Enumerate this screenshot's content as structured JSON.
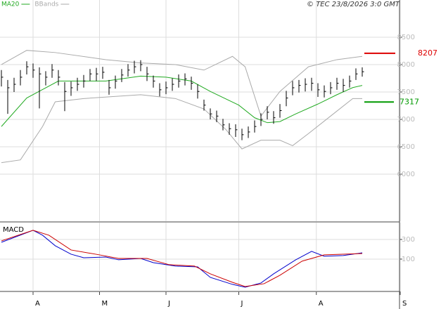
{
  "chart_data": [
    {
      "type": "ohlc",
      "legend": [
        {
          "name": "MA20",
          "color": "#22aa22"
        },
        {
          "name": "BBands",
          "color": "#aaaaaa"
        }
      ],
      "credit": "© TEC 23/8/2026 3:0 GMT",
      "x": [
        0,
        2,
        4,
        6,
        8,
        10,
        12,
        14,
        16,
        18,
        20,
        22,
        24,
        26,
        28,
        30,
        32,
        34,
        36,
        38,
        40,
        42,
        44,
        46,
        48,
        50,
        52,
        54,
        56,
        58,
        60,
        62,
        64,
        66,
        68,
        70,
        72,
        74,
        76,
        78,
        80,
        82,
        84,
        86,
        88,
        90,
        92,
        94,
        96,
        98,
        100,
        102,
        104,
        106,
        108,
        110,
        112,
        114
      ],
      "high": [
        7900,
        7720,
        7760,
        7900,
        8060,
        8020,
        7950,
        7880,
        8010,
        7900,
        7680,
        7690,
        7760,
        7810,
        7920,
        7940,
        7960,
        7720,
        7800,
        7920,
        8010,
        8070,
        8080,
        7960,
        7800,
        7660,
        7690,
        7750,
        7820,
        7840,
        7780,
        7640,
        7360,
        7200,
        7160,
        7010,
        6930,
        6910,
        6830,
        6870,
        6980,
        7110,
        7240,
        7150,
        7280,
        7520,
        7700,
        7720,
        7750,
        7760,
        7660,
        7620,
        7680,
        7760,
        7740,
        7800,
        7930,
        7950
      ],
      "low": [
        7600,
        7100,
        7500,
        7620,
        7820,
        7760,
        7200,
        7620,
        7760,
        7620,
        7150,
        7430,
        7520,
        7580,
        7700,
        7700,
        7740,
        7450,
        7560,
        7680,
        7780,
        7840,
        7880,
        7700,
        7580,
        7420,
        7460,
        7520,
        7580,
        7620,
        7540,
        7380,
        7160,
        7000,
        6950,
        6800,
        6720,
        6680,
        6620,
        6660,
        6760,
        6880,
        7000,
        6920,
        7030,
        7240,
        7440,
        7490,
        7510,
        7520,
        7410,
        7400,
        7460,
        7540,
        7500,
        7580,
        7720,
        7780
      ],
      "close": [
        7770,
        7577,
        7640,
        7770,
        7960,
        7900,
        7830,
        7770,
        7900,
        7770,
        7510,
        7577,
        7640,
        7700,
        7830,
        7830,
        7860,
        7577,
        7700,
        7810,
        7900,
        7960,
        8000,
        7830,
        7700,
        7540,
        7577,
        7640,
        7700,
        7740,
        7660,
        7510,
        7260,
        7100,
        7060,
        6900,
        6830,
        6810,
        6720,
        6770,
        6870,
        7000,
        7130,
        7030,
        7160,
        7390,
        7577,
        7620,
        7640,
        7660,
        7540,
        7510,
        7577,
        7660,
        7620,
        7700,
        7830,
        7870
      ],
      "color": "#000000",
      "ma20": {
        "x": [
          0,
          8,
          18,
          33,
          44,
          52,
          60,
          66,
          75,
          80,
          84,
          88,
          93,
          100,
          106,
          111,
          114
        ],
        "values": [
          6870,
          7390,
          7700,
          7700,
          7790,
          7770,
          7700,
          7510,
          7260,
          7030,
          6940,
          6960,
          7100,
          7280,
          7450,
          7580,
          7620
        ]
      },
      "bb_upper": {
        "x": [
          0,
          8,
          17,
          33,
          44,
          55,
          64,
          73,
          77,
          82,
          88,
          97,
          106,
          114
        ],
        "values": [
          8000,
          8260,
          8220,
          8090,
          8030,
          8000,
          7900,
          8150,
          7960,
          7060,
          7510,
          7960,
          8090,
          8150
        ]
      },
      "bb_lower": {
        "x": [
          0,
          6,
          13,
          17,
          26,
          44,
          55,
          64,
          71,
          76,
          82,
          88,
          92,
          97,
          104,
          111,
          114
        ],
        "values": [
          6210,
          6260,
          6870,
          7320,
          7380,
          7450,
          7380,
          7190,
          6810,
          6460,
          6620,
          6620,
          6520,
          6740,
          7060,
          7380,
          7380
        ]
      },
      "levels": [
        {
          "value": 8207,
          "color": "#dd0000"
        },
        {
          "value": 7317,
          "color": "#009900"
        }
      ],
      "ylim": [
        5141,
        9179
      ],
      "yticks": [
        8500,
        8000,
        7500,
        7000,
        6500,
        6000
      ],
      "grid": true
    },
    {
      "type": "line",
      "label": "MACD",
      "series": [
        {
          "color": "#0000cc",
          "x": [
            0,
            10,
            13,
            17,
            22,
            26,
            33,
            37,
            44,
            48,
            55,
            62,
            66,
            73,
            77,
            82,
            86,
            93,
            98,
            102,
            108,
            114
          ],
          "values": [
            271,
            393,
            343,
            236,
            150,
            114,
            121,
            93,
            107,
            64,
            29,
            21,
            -86,
            -157,
            -186,
            -143,
            -50,
            93,
            179,
            129,
            136,
            164
          ]
        },
        {
          "color": "#cc0000",
          "x": [
            0,
            10,
            15,
            22,
            31,
            37,
            46,
            53,
            61,
            66,
            73,
            77,
            83,
            88,
            95,
            102,
            114
          ],
          "values": [
            286,
            393,
            343,
            193,
            143,
            107,
            107,
            43,
            29,
            -50,
            -136,
            -179,
            -150,
            -64,
            79,
            143,
            157
          ]
        }
      ],
      "xlim": [
        0,
        126
      ],
      "xticks": [
        {
          "value": 10,
          "label": "A"
        },
        {
          "value": 31,
          "label": "M"
        },
        {
          "value": 52,
          "label": "J"
        },
        {
          "value": 75,
          "label": "J"
        },
        {
          "value": 99.5,
          "label": "A"
        },
        {
          "value": 126,
          "label": "S"
        }
      ],
      "ylim": [
        -229,
        464
      ],
      "yticks": [
        300,
        100
      ],
      "grid": true
    }
  ]
}
